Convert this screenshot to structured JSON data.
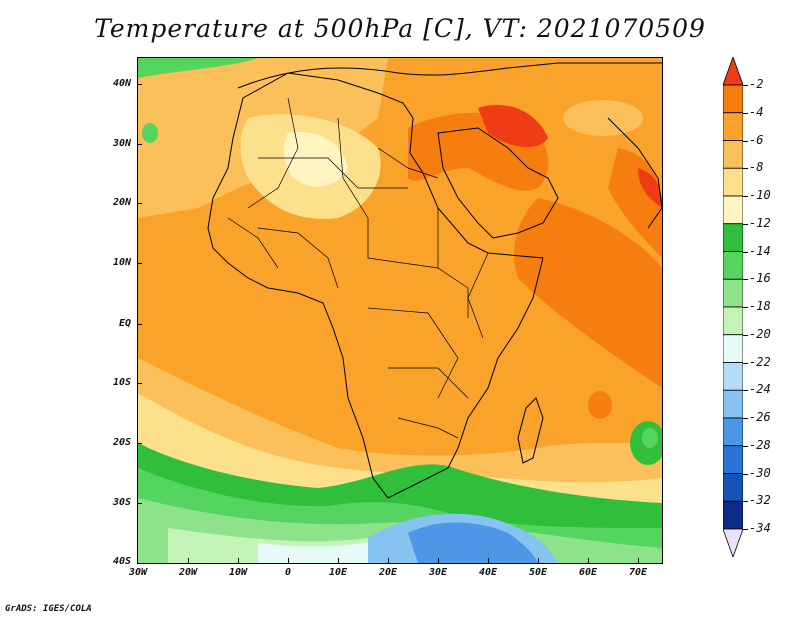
{
  "title": "Temperature at 500hPa [C], VT: 2021070509",
  "credit": "GrADS: IGES/COLA",
  "axes": {
    "lat_labels": [
      "40N",
      "30N",
      "20N",
      "10N",
      "EQ",
      "10S",
      "20S",
      "30S",
      "40S"
    ],
    "lon_labels": [
      "30W",
      "20W",
      "10W",
      "0",
      "10E",
      "20E",
      "30E",
      "40E",
      "50E",
      "60E",
      "70E"
    ]
  },
  "colorbar": {
    "labels": [
      "-2",
      "-4",
      "-6",
      "-8",
      "-10",
      "-12",
      "-14",
      "-16",
      "-18",
      "-20",
      "-22",
      "-24",
      "-26",
      "-28",
      "-30",
      "-32",
      "-34"
    ],
    "colors": [
      "#f03c14",
      "#f57e0e",
      "#f9a32a",
      "#fbc05a",
      "#fde08c",
      "#fff5c0",
      "#2fbf3b",
      "#55d560",
      "#8ee38a",
      "#c3f3b6",
      "#e6fbf7",
      "#b4dcf6",
      "#86c3f0",
      "#4e97e6",
      "#2a72d6",
      "#1652b8",
      "#0c2a86",
      "#0a1460"
    ]
  }
}
